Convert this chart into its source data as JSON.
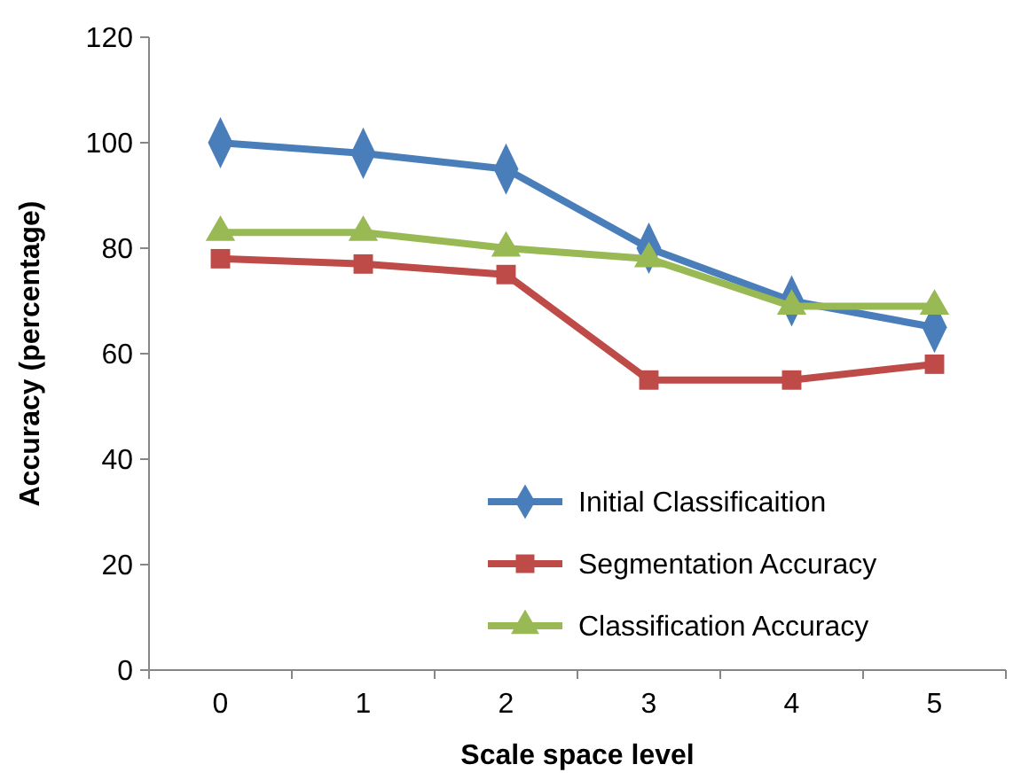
{
  "chart_data": {
    "type": "line",
    "xlabel": "Scale space level",
    "ylabel": "Accuracy (percentage)",
    "categories": [
      "0",
      "1",
      "2",
      "3",
      "4",
      "5"
    ],
    "ylim": [
      0,
      120
    ],
    "yticks": [
      0,
      20,
      40,
      60,
      80,
      100,
      120
    ],
    "grid": false,
    "legend": "bottom right",
    "series": [
      {
        "name": "Initial Classificaition",
        "color": "#4a7ebb",
        "marker": "diamond",
        "values": [
          100,
          98,
          95,
          80,
          70,
          65
        ]
      },
      {
        "name": "Segmentation Accuracy",
        "color": "#be4b48",
        "marker": "square",
        "values": [
          78,
          77,
          75,
          55,
          55,
          58
        ]
      },
      {
        "name": "Classification Accuracy",
        "color": "#98b954",
        "marker": "triangle",
        "values": [
          83,
          83,
          80,
          78,
          69,
          69
        ]
      }
    ]
  }
}
